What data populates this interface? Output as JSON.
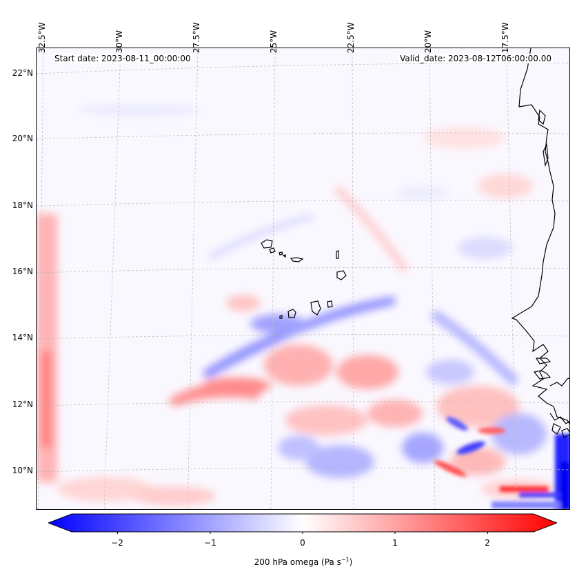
{
  "map": {
    "info_left": "Start date: 2023-08-11_00:00:00",
    "info_right": "Valid_date: 2023-08-12T06:00:00.00",
    "lon_labels": [
      "32.5°W",
      "30°W",
      "27.5°W",
      "25°W",
      "22.5°W",
      "20°W",
      "17.5°W"
    ],
    "lat_labels": [
      "22°N",
      "20°N",
      "18°N",
      "16°N",
      "14°N",
      "12°N",
      "10°N"
    ],
    "extent": {
      "lon_min": -33,
      "lon_max": -15,
      "lat_min": 9,
      "lat_max": 22.7
    },
    "features": [
      "Cabo Verde islands",
      "West African coastline (Senegal, Mauritania, Guinea-Bissau)"
    ]
  },
  "colorbar": {
    "label_prefix": "200 hPa omega (Pa s",
    "label_sup": "−1",
    "label_suffix": ")",
    "ticks": [
      "−2",
      "−1",
      "0",
      "1",
      "2"
    ],
    "range": [
      -2.5,
      2.5
    ],
    "colors": {
      "min": "#0000ff",
      "mid": "#ffffff",
      "max": "#ff0000"
    }
  }
}
